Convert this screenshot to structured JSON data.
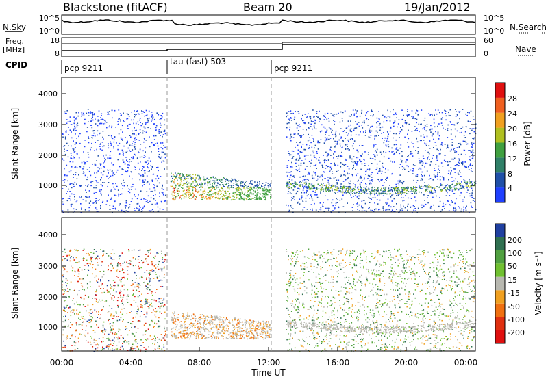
{
  "header": {
    "station": "Blackstone (fitACF)",
    "beam": "Beam 20",
    "date": "19/Jan/2012"
  },
  "noise_panel": {
    "left_label": "N.Sky",
    "left_ticks": [
      "10^5",
      "10^0"
    ],
    "right_ticks": [
      "10^5",
      "10^0"
    ],
    "right_label": "N.Search"
  },
  "freq_panel": {
    "left_label_1": "Freq.",
    "left_label_2": "[MHz]",
    "left_ticks": [
      "18",
      "8"
    ],
    "right_ticks": [
      "60",
      "0"
    ],
    "right_label": "Nave"
  },
  "cpid": {
    "label": "CPID",
    "segments": [
      {
        "name": "pcp 9211",
        "start_hr": 0,
        "end_hr": 6
      },
      {
        "name": "tau (fast) 503",
        "start_hr": 6,
        "end_hr": 12.1
      },
      {
        "name": "pcp 9211",
        "start_hr": 12.1,
        "end_hr": 24
      }
    ]
  },
  "axes": {
    "y_label": "Slant Range [km]",
    "y_ticks": [
      "1000",
      "2000",
      "3000",
      "4000"
    ],
    "x_ticks": [
      "00:00",
      "04:00",
      "08:00",
      "12:00",
      "16:00",
      "20:00",
      "00:00"
    ],
    "x_label": "Time UT"
  },
  "power_scale": {
    "label": "Power [dB]",
    "ticks": [
      "4",
      "8",
      "12",
      "16",
      "20",
      "24",
      "28"
    ],
    "colors": [
      "#2040ff",
      "#2050a8",
      "#308068",
      "#40a040",
      "#b0c020",
      "#f0a020",
      "#f06020",
      "#e01010"
    ]
  },
  "velocity_scale": {
    "label": "Velocity [m s⁻¹]",
    "ticks": [
      "200",
      "100",
      "50",
      "15",
      "-15",
      "-50",
      "-100",
      "-200"
    ],
    "colors": [
      "#2040a0",
      "#307050",
      "#50a040",
      "#70c030",
      "#b8b8b0",
      "#f0a020",
      "#f07010",
      "#e03010",
      "#e01010"
    ]
  },
  "chart_data": {
    "type": "heatmap",
    "x_range_hr": [
      0,
      24
    ],
    "y_range_km": [
      200,
      4500
    ],
    "echo_regions": [
      {
        "name": "scatter-pre",
        "t0": 0,
        "t1": 6,
        "r0": 200,
        "r1": 3500
      },
      {
        "name": "tau-enhanced",
        "t0": 6.3,
        "t1": 12.1,
        "r0": 600,
        "r1": 1500
      },
      {
        "name": "post-band",
        "t0": 13,
        "t1": 24,
        "r0": 900,
        "r1": 1400
      }
    ]
  }
}
